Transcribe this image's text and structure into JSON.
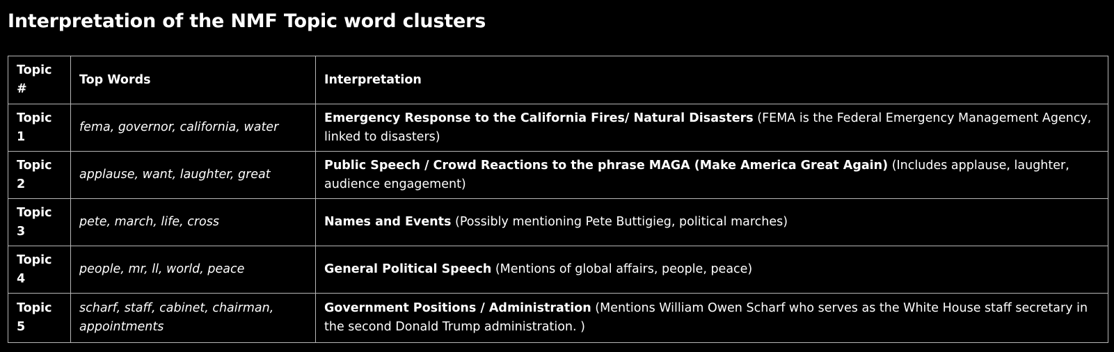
{
  "page": {
    "title": "Interpretation of the NMF Topic word clusters"
  },
  "table": {
    "headers": {
      "topic": "Topic #",
      "words": "Top Words",
      "interpretation": "Interpretation"
    },
    "rows": [
      {
        "topic": "Topic 1",
        "words": "fema, governor, california, water",
        "interpretation_title": "Emergency Response to the California Fires/ Natural Disasters",
        "interpretation_note": " (FEMA is the Federal Emergency Management Agency, linked to disasters)"
      },
      {
        "topic": "Topic 2",
        "words": "applause, want, laughter, great",
        "interpretation_title": "Public Speech / Crowd Reactions to the phrase MAGA (Make America Great Again)",
        "interpretation_note": " (Includes applause, laughter, audience engagement)"
      },
      {
        "topic": "Topic 3",
        "words": "pete, march, life, cross",
        "interpretation_title": "Names and Events",
        "interpretation_note": " (Possibly mentioning Pete Buttigieg, political marches)"
      },
      {
        "topic": "Topic 4",
        "words": "people, mr, ll, world, peace",
        "interpretation_title": "General Political Speech",
        "interpretation_note": " (Mentions of global affairs, people, peace)"
      },
      {
        "topic": "Topic 5",
        "words": "scharf, staff, cabinet, chairman, appointments",
        "interpretation_title": "Government Positions / Administration",
        "interpretation_note": " (Mentions William Owen Scharf who serves as the White House staff secretary in the second Donald Trump administration. )"
      }
    ]
  }
}
